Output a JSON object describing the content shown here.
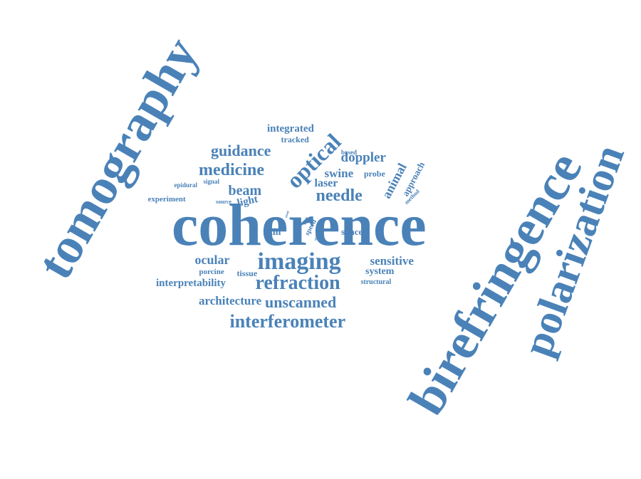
{
  "palette": {
    "word_color": "#4a82b8",
    "background": "#ffffff"
  },
  "words": [
    {
      "id": "tomography",
      "text": "tomography"
    },
    {
      "id": "coherence",
      "text": "coherence"
    },
    {
      "id": "birefringence",
      "text": "birefringence"
    },
    {
      "id": "polarization",
      "text": "polarization"
    },
    {
      "id": "imaging",
      "text": "imaging"
    },
    {
      "id": "interferometer",
      "text": "interferometer"
    },
    {
      "id": "refraction",
      "text": "refraction"
    },
    {
      "id": "optical",
      "text": "optical"
    },
    {
      "id": "medicine",
      "text": "medicine"
    },
    {
      "id": "guidance",
      "text": "guidance"
    },
    {
      "id": "needle",
      "text": "needle"
    },
    {
      "id": "unscanned",
      "text": "unscanned"
    },
    {
      "id": "architecture",
      "text": "architecture"
    },
    {
      "id": "integrated",
      "text": "integrated"
    },
    {
      "id": "doppler",
      "text": "doppler"
    },
    {
      "id": "beam",
      "text": "beam"
    },
    {
      "id": "sensitive",
      "text": "sensitive"
    },
    {
      "id": "ocular",
      "text": "ocular"
    },
    {
      "id": "animal",
      "text": "animal"
    },
    {
      "id": "interpretability",
      "text": "interpretability"
    },
    {
      "id": "swine",
      "text": "swine"
    },
    {
      "id": "laser",
      "text": "laser"
    },
    {
      "id": "light",
      "text": "light"
    },
    {
      "id": "system",
      "text": "system"
    },
    {
      "id": "approach",
      "text": "approach"
    },
    {
      "id": "skin",
      "text": "skin"
    },
    {
      "id": "space",
      "text": "space"
    },
    {
      "id": "tracked",
      "text": "tracked"
    },
    {
      "id": "experiment",
      "text": "experiment"
    },
    {
      "id": "probe",
      "text": "probe"
    },
    {
      "id": "porcine",
      "text": "porcine"
    },
    {
      "id": "tissue",
      "text": "tissue"
    },
    {
      "id": "structural",
      "text": "structural"
    },
    {
      "id": "based",
      "text": "based"
    },
    {
      "id": "epidural",
      "text": "epidural"
    },
    {
      "id": "signal",
      "text": "signal"
    },
    {
      "id": "source",
      "text": "source"
    },
    {
      "id": "speed",
      "text": "speed"
    },
    {
      "id": "method",
      "text": "method"
    },
    {
      "id": "five",
      "text": "five"
    },
    {
      "id": "used",
      "text": "used"
    },
    {
      "id": "spinal",
      "text": "spinal"
    }
  ]
}
